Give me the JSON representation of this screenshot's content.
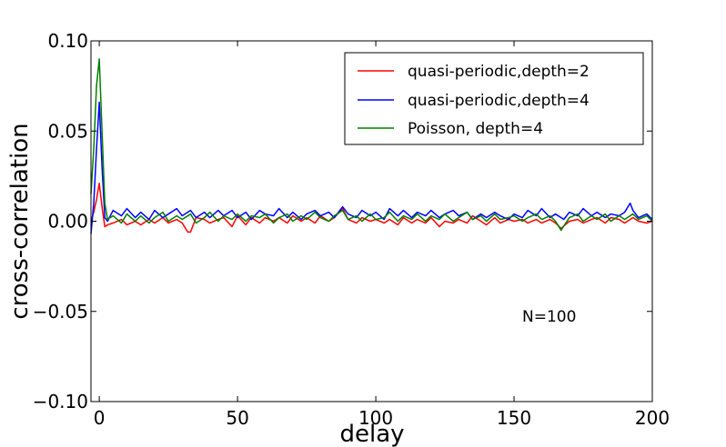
{
  "chart_data": {
    "type": "line",
    "title": "",
    "xlabel": "delay",
    "ylabel": "cross-correlation",
    "xlim": [
      -3,
      200
    ],
    "ylim": [
      -0.1,
      0.1
    ],
    "xticks": [
      0,
      50,
      100,
      150,
      200
    ],
    "yticks": [
      -0.1,
      -0.05,
      0.0,
      0.05,
      0.1
    ],
    "xtick_labels": [
      "0",
      "50",
      "100",
      "150",
      "200"
    ],
    "ytick_labels": [
      "−0.10",
      "−0.05",
      "0.00",
      "0.05",
      "0.10"
    ],
    "grid": false,
    "legend_position": "top-right",
    "annotation": "N=100",
    "series": [
      {
        "name": "quasi-periodic,depth=2",
        "color": "#ff0000",
        "x": [
          -3,
          -2,
          -1,
          0,
          1,
          2,
          3,
          5,
          8,
          10,
          13,
          15,
          18,
          20,
          23,
          25,
          28,
          30,
          32,
          33,
          35,
          38,
          40,
          43,
          45,
          48,
          50,
          53,
          55,
          58,
          60,
          63,
          65,
          68,
          70,
          73,
          75,
          78,
          80,
          83,
          85,
          88,
          90,
          93,
          95,
          98,
          100,
          103,
          105,
          108,
          110,
          113,
          115,
          118,
          120,
          123,
          125,
          128,
          130,
          133,
          135,
          138,
          140,
          143,
          145,
          148,
          150,
          153,
          155,
          158,
          160,
          163,
          165,
          167,
          170,
          173,
          175,
          178,
          180,
          183,
          185,
          188,
          190,
          193,
          195,
          198,
          200
        ],
        "y": [
          0.0,
          0.005,
          0.012,
          0.021,
          0.008,
          -0.003,
          -0.002,
          -0.001,
          0.001,
          -0.002,
          0.0,
          -0.002,
          0.001,
          -0.001,
          0.002,
          -0.001,
          0.001,
          -0.001,
          -0.006,
          -0.006,
          0.002,
          0.001,
          -0.001,
          0.001,
          0.002,
          -0.003,
          0.003,
          -0.002,
          0.002,
          -0.001,
          0.002,
          0.0,
          0.002,
          -0.001,
          0.003,
          0.0,
          0.002,
          -0.001,
          0.003,
          0.0,
          0.002,
          0.007,
          0.001,
          -0.001,
          0.002,
          0.0,
          0.001,
          -0.001,
          0.001,
          -0.002,
          0.002,
          -0.001,
          0.001,
          -0.001,
          0.002,
          -0.003,
          0.0,
          -0.001,
          0.001,
          -0.001,
          0.003,
          0.0,
          -0.002,
          0.002,
          -0.001,
          0.001,
          0.0,
          0.001,
          -0.001,
          0.001,
          -0.001,
          0.001,
          -0.001,
          -0.004,
          0.0,
          0.001,
          -0.001,
          0.001,
          0.002,
          -0.001,
          0.002,
          0.001,
          -0.001,
          0.002,
          0.0,
          -0.001,
          0.0
        ]
      },
      {
        "name": "quasi-periodic,depth=4",
        "color": "#0000ff",
        "x": [
          -3,
          -2,
          -1,
          0,
          1,
          2,
          3,
          5,
          8,
          10,
          13,
          15,
          18,
          20,
          23,
          25,
          28,
          30,
          33,
          35,
          38,
          40,
          43,
          45,
          48,
          50,
          53,
          55,
          58,
          60,
          63,
          65,
          68,
          70,
          73,
          75,
          78,
          80,
          83,
          85,
          88,
          90,
          93,
          95,
          98,
          100,
          103,
          105,
          108,
          110,
          113,
          115,
          118,
          120,
          123,
          125,
          128,
          130,
          133,
          135,
          138,
          140,
          143,
          145,
          148,
          150,
          153,
          155,
          158,
          160,
          163,
          165,
          168,
          170,
          173,
          175,
          178,
          180,
          183,
          185,
          188,
          190,
          192,
          193,
          195,
          198,
          200
        ],
        "y": [
          -0.007,
          0.01,
          0.04,
          0.066,
          0.03,
          0.002,
          0.0,
          0.006,
          0.003,
          0.007,
          0.002,
          0.005,
          0.001,
          0.006,
          0.002,
          0.004,
          0.007,
          0.003,
          0.006,
          0.002,
          0.005,
          0.002,
          0.006,
          0.003,
          0.006,
          0.002,
          0.005,
          0.001,
          0.006,
          0.004,
          0.003,
          0.007,
          0.002,
          0.005,
          0.001,
          0.004,
          0.006,
          0.003,
          0.005,
          0.002,
          0.008,
          0.004,
          0.002,
          0.006,
          0.003,
          0.005,
          0.001,
          0.007,
          0.003,
          0.006,
          0.002,
          0.005,
          0.003,
          0.006,
          0.002,
          0.004,
          0.006,
          0.003,
          0.005,
          0.001,
          0.004,
          0.002,
          0.005,
          0.003,
          0.001,
          0.004,
          0.002,
          0.006,
          0.003,
          0.007,
          0.002,
          0.004,
          0.001,
          0.005,
          0.003,
          0.007,
          0.003,
          0.005,
          0.002,
          0.004,
          0.003,
          0.005,
          0.01,
          0.006,
          0.002,
          0.004,
          0.001
        ]
      },
      {
        "name": "Poisson, depth=4",
        "color": "#008000",
        "x": [
          -3,
          -2,
          -1,
          0,
          1,
          2,
          3,
          5,
          8,
          10,
          13,
          15,
          18,
          20,
          23,
          25,
          28,
          30,
          33,
          35,
          38,
          40,
          43,
          45,
          48,
          50,
          53,
          55,
          58,
          60,
          63,
          65,
          68,
          70,
          73,
          75,
          78,
          80,
          83,
          85,
          88,
          90,
          93,
          95,
          98,
          100,
          103,
          105,
          108,
          110,
          113,
          115,
          118,
          120,
          123,
          125,
          128,
          130,
          133,
          135,
          138,
          140,
          143,
          145,
          148,
          150,
          153,
          155,
          158,
          160,
          163,
          165,
          167,
          170,
          173,
          175,
          178,
          180,
          183,
          185,
          188,
          190,
          193,
          195,
          198,
          200
        ],
        "y": [
          0.015,
          0.04,
          0.075,
          0.09,
          0.05,
          0.01,
          0.001,
          0.003,
          -0.001,
          0.004,
          0.0,
          0.003,
          -0.001,
          0.002,
          0.005,
          0.0,
          0.003,
          0.001,
          0.004,
          -0.001,
          0.002,
          0.005,
          0.0,
          0.003,
          0.001,
          0.004,
          0.0,
          0.003,
          0.002,
          0.004,
          -0.001,
          0.002,
          0.004,
          0.0,
          0.003,
          0.001,
          0.005,
          0.002,
          0.0,
          0.003,
          0.006,
          0.001,
          0.003,
          0.0,
          0.004,
          0.001,
          0.002,
          0.005,
          0.0,
          0.003,
          0.001,
          0.004,
          0.0,
          0.003,
          0.001,
          0.004,
          0.0,
          0.002,
          0.005,
          0.001,
          0.003,
          0.0,
          0.004,
          0.001,
          0.002,
          0.003,
          0.0,
          0.002,
          0.004,
          0.001,
          0.003,
          0.0,
          -0.005,
          0.002,
          0.004,
          0.0,
          0.003,
          0.001,
          0.004,
          0.0,
          0.003,
          0.001,
          0.004,
          0.001,
          0.003,
          0.0
        ]
      }
    ]
  }
}
